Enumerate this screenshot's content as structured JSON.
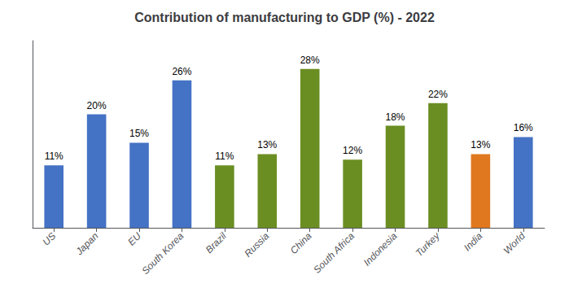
{
  "chart_data": {
    "type": "bar",
    "title": "Contribution of manufacturing to GDP (%) - 2022",
    "categories": [
      "US",
      "Japan",
      "EU",
      "South Korea",
      "Brazil",
      "Russia",
      "China",
      "South Africa",
      "Indonesia",
      "Turkey",
      "India",
      "World"
    ],
    "values": [
      11,
      20,
      15,
      26,
      11,
      13,
      28,
      12,
      18,
      22,
      13,
      16
    ],
    "value_labels": [
      "11%",
      "20%",
      "15%",
      "26%",
      "11%",
      "13%",
      "28%",
      "12%",
      "18%",
      "22%",
      "13%",
      "16%"
    ],
    "colors": [
      "#4472C4",
      "#4472C4",
      "#4472C4",
      "#4472C4",
      "#6B8E23",
      "#6B8E23",
      "#6B8E23",
      "#6B8E23",
      "#6B8E23",
      "#6B8E23",
      "#E07820",
      "#4472C4"
    ],
    "ylim": [
      0,
      33
    ],
    "grid": false,
    "data_labels": true,
    "tick_labels": "x"
  }
}
